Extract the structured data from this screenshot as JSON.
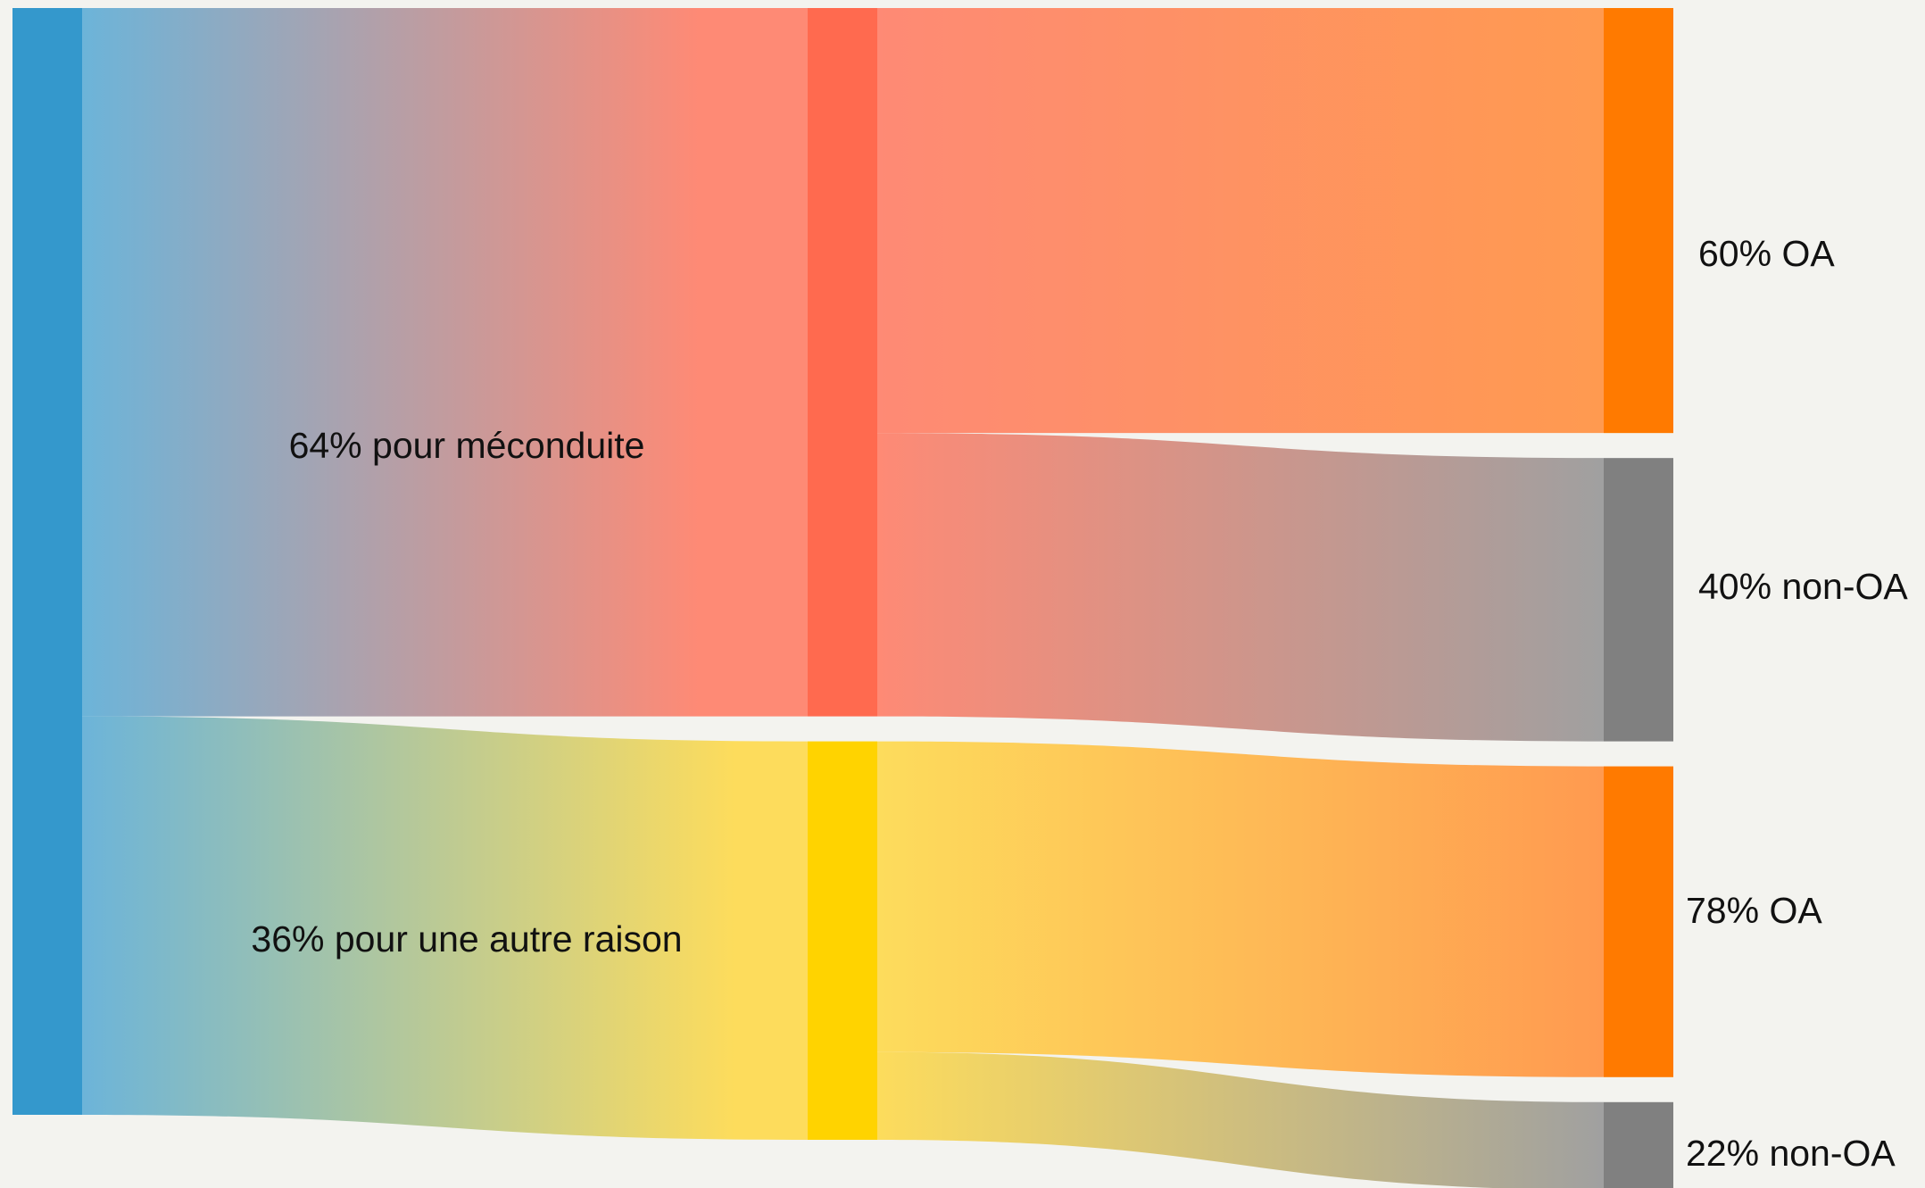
{
  "chart_data": {
    "type": "sankey",
    "colors": {
      "background": "#f3f3ef",
      "source": "#3498cc",
      "misconduct": "#ff6a4f",
      "other": "#ffd300",
      "oa": "#ff7a00",
      "non_oa": "#808080"
    },
    "nodes": [
      {
        "id": "total"
      },
      {
        "id": "misconduct",
        "label": "64% pour méconduite",
        "value": 64
      },
      {
        "id": "other",
        "label": "36% pour une autre raison",
        "value": 36
      },
      {
        "id": "misconduct-oa",
        "label": "60% OA",
        "value": 60
      },
      {
        "id": "misconduct-non-oa",
        "label": "40% non-OA",
        "value": 40
      },
      {
        "id": "other-oa",
        "label": "78% OA",
        "value": 78
      },
      {
        "id": "other-non-oa",
        "label": "22% non-OA",
        "value": 22
      }
    ],
    "links": [
      {
        "source": "total",
        "target": "misconduct",
        "value": 64
      },
      {
        "source": "total",
        "target": "other",
        "value": 36
      },
      {
        "source": "misconduct",
        "target": "misconduct-oa",
        "value": 60
      },
      {
        "source": "misconduct",
        "target": "misconduct-non-oa",
        "value": 40
      },
      {
        "source": "other",
        "target": "other-oa",
        "value": 78
      },
      {
        "source": "other",
        "target": "other-non-oa",
        "value": 22
      }
    ]
  }
}
